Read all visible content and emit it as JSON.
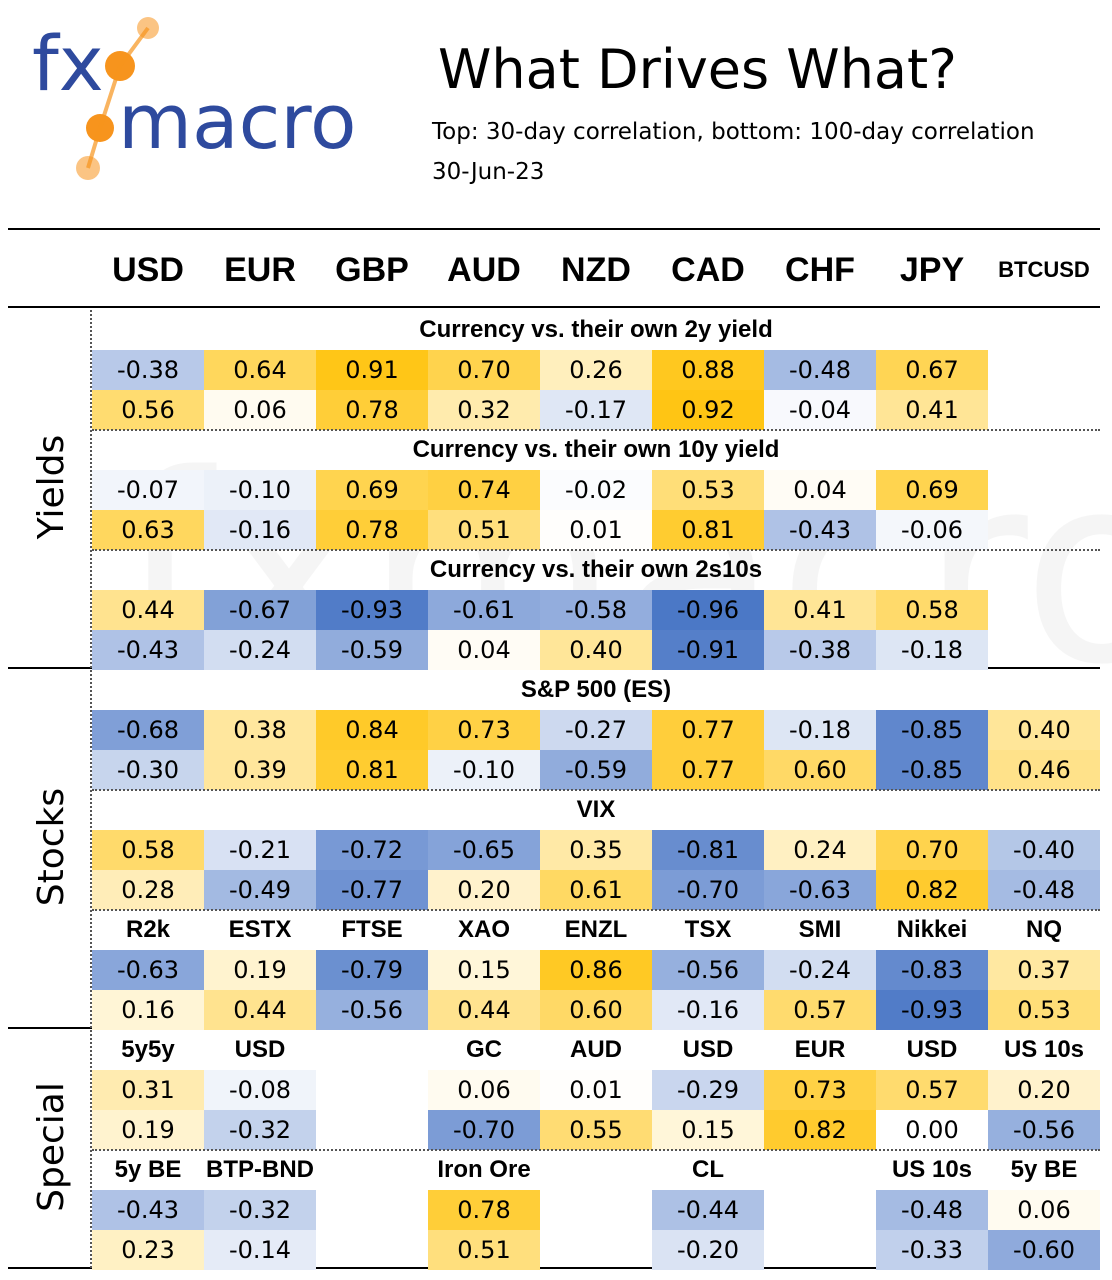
{
  "header": {
    "logo_text": "fxmacro",
    "title": "What Drives What?",
    "subtitle": "Top: 30-day correlation, bottom: 100-day correlation",
    "date": "30-Jun-23"
  },
  "colors": {
    "negative_max": "#4472c4",
    "neutral": "#ffffff",
    "positive_max": "#ffc000",
    "logo_blue": "#2e4a9e",
    "logo_orange": "#f7941d"
  },
  "chart_data": {
    "type": "heatmap",
    "columns": [
      "USD",
      "EUR",
      "GBP",
      "AUD",
      "NZD",
      "CAD",
      "CHF",
      "JPY",
      "BTCUSD"
    ],
    "categories": [
      "Yields",
      "Stocks",
      "Special"
    ],
    "sections": [
      {
        "category": "Yields",
        "title": "Currency vs. their own 2y yield",
        "headers": [],
        "rows": [
          [
            -0.38,
            0.64,
            0.91,
            0.7,
            0.26,
            0.88,
            -0.48,
            0.67,
            null
          ],
          [
            0.56,
            0.06,
            0.78,
            0.32,
            -0.17,
            0.92,
            -0.04,
            0.41,
            null
          ]
        ]
      },
      {
        "category": "Yields",
        "title": "Currency vs. their own 10y yield",
        "headers": [],
        "rows": [
          [
            -0.07,
            -0.1,
            0.69,
            0.74,
            -0.02,
            0.53,
            0.04,
            0.69,
            null
          ],
          [
            0.63,
            -0.16,
            0.78,
            0.51,
            0.01,
            0.81,
            -0.43,
            -0.06,
            null
          ]
        ]
      },
      {
        "category": "Yields",
        "title": "Currency vs. their own 2s10s",
        "headers": [],
        "rows": [
          [
            0.44,
            -0.67,
            -0.93,
            -0.61,
            -0.58,
            -0.96,
            0.41,
            0.58,
            null
          ],
          [
            -0.43,
            -0.24,
            -0.59,
            0.04,
            0.4,
            -0.91,
            -0.38,
            -0.18,
            null
          ]
        ]
      },
      {
        "category": "Stocks",
        "title": "S&P 500 (ES)",
        "headers": [],
        "rows": [
          [
            -0.68,
            0.38,
            0.84,
            0.73,
            -0.27,
            0.77,
            -0.18,
            -0.85,
            0.4
          ],
          [
            -0.3,
            0.39,
            0.81,
            -0.1,
            -0.59,
            0.77,
            0.6,
            -0.85,
            0.46
          ]
        ]
      },
      {
        "category": "Stocks",
        "title": "VIX",
        "headers": [],
        "rows": [
          [
            0.58,
            -0.21,
            -0.72,
            -0.65,
            0.35,
            -0.81,
            0.24,
            0.7,
            -0.4
          ],
          [
            0.28,
            -0.49,
            -0.77,
            0.2,
            0.61,
            -0.7,
            -0.63,
            0.82,
            -0.48
          ]
        ]
      },
      {
        "category": "Stocks",
        "title": "",
        "headers": [
          "R2k",
          "ESTX",
          "FTSE",
          "XAO",
          "ENZL",
          "TSX",
          "SMI",
          "Nikkei",
          "NQ"
        ],
        "rows": [
          [
            -0.63,
            0.19,
            -0.79,
            0.15,
            0.86,
            -0.56,
            -0.24,
            -0.83,
            0.37
          ],
          [
            0.16,
            0.44,
            -0.56,
            0.44,
            0.6,
            -0.16,
            0.57,
            -0.93,
            0.53
          ]
        ]
      },
      {
        "category": "Special",
        "title": "",
        "headers": [
          "5y5y",
          "USD",
          "",
          "GC",
          "AUD",
          "USD",
          "EUR",
          "USD",
          "US 10s"
        ],
        "rows": [
          [
            0.31,
            -0.08,
            null,
            0.06,
            0.01,
            -0.29,
            0.73,
            0.57,
            0.2
          ],
          [
            0.19,
            -0.32,
            null,
            -0.7,
            0.55,
            0.15,
            0.82,
            0.0,
            -0.56
          ]
        ]
      },
      {
        "category": "Special",
        "title": "",
        "headers": [
          "5y BE",
          "BTP-BND",
          "",
          "Iron Ore",
          "",
          "CL",
          "",
          "US 10s",
          "5y BE"
        ],
        "rows": [
          [
            -0.43,
            -0.32,
            null,
            0.78,
            null,
            -0.44,
            null,
            -0.48,
            0.06
          ],
          [
            0.23,
            -0.14,
            null,
            0.51,
            null,
            -0.2,
            null,
            -0.33,
            -0.6
          ]
        ]
      }
    ]
  }
}
